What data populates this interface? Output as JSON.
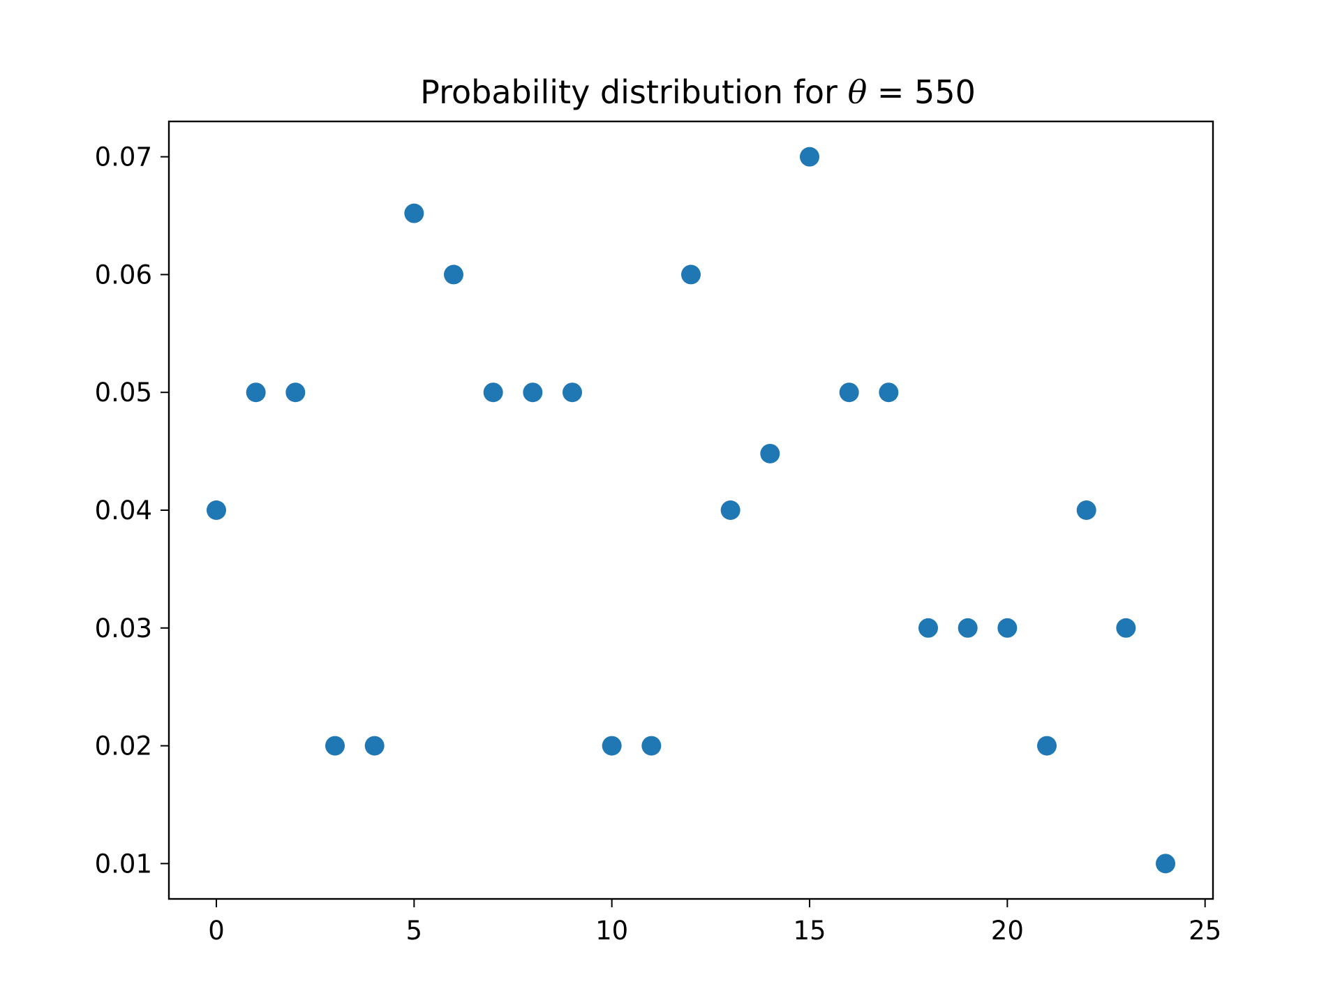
{
  "chart_data": {
    "type": "scatter",
    "title_prefix": "Probability distribution for ",
    "title_symbol": "θ",
    "title_suffix": " = 550",
    "xlabel": "",
    "ylabel": "",
    "xlim": [
      -1.2,
      25.2
    ],
    "ylim": [
      0.007,
      0.073
    ],
    "xticks": [
      0,
      5,
      10,
      15,
      20,
      25
    ],
    "yticks": [
      0.01,
      0.02,
      0.03,
      0.04,
      0.05,
      0.06,
      0.07
    ],
    "xtick_labels": [
      "0",
      "5",
      "10",
      "15",
      "20",
      "25"
    ],
    "ytick_labels": [
      "0.01",
      "0.02",
      "0.03",
      "0.04",
      "0.05",
      "0.06",
      "0.07"
    ],
    "grid": false,
    "marker_color": "#1f77b4",
    "x": [
      0,
      1,
      2,
      3,
      4,
      5,
      6,
      7,
      8,
      9,
      10,
      11,
      12,
      13,
      14,
      15,
      16,
      17,
      18,
      19,
      20,
      21,
      22,
      23,
      24
    ],
    "y": [
      0.04,
      0.05,
      0.05,
      0.02,
      0.02,
      0.0652,
      0.06,
      0.05,
      0.05,
      0.05,
      0.02,
      0.02,
      0.06,
      0.04,
      0.0448,
      0.07,
      0.05,
      0.05,
      0.03,
      0.03,
      0.03,
      0.02,
      0.04,
      0.03,
      0.01
    ]
  }
}
